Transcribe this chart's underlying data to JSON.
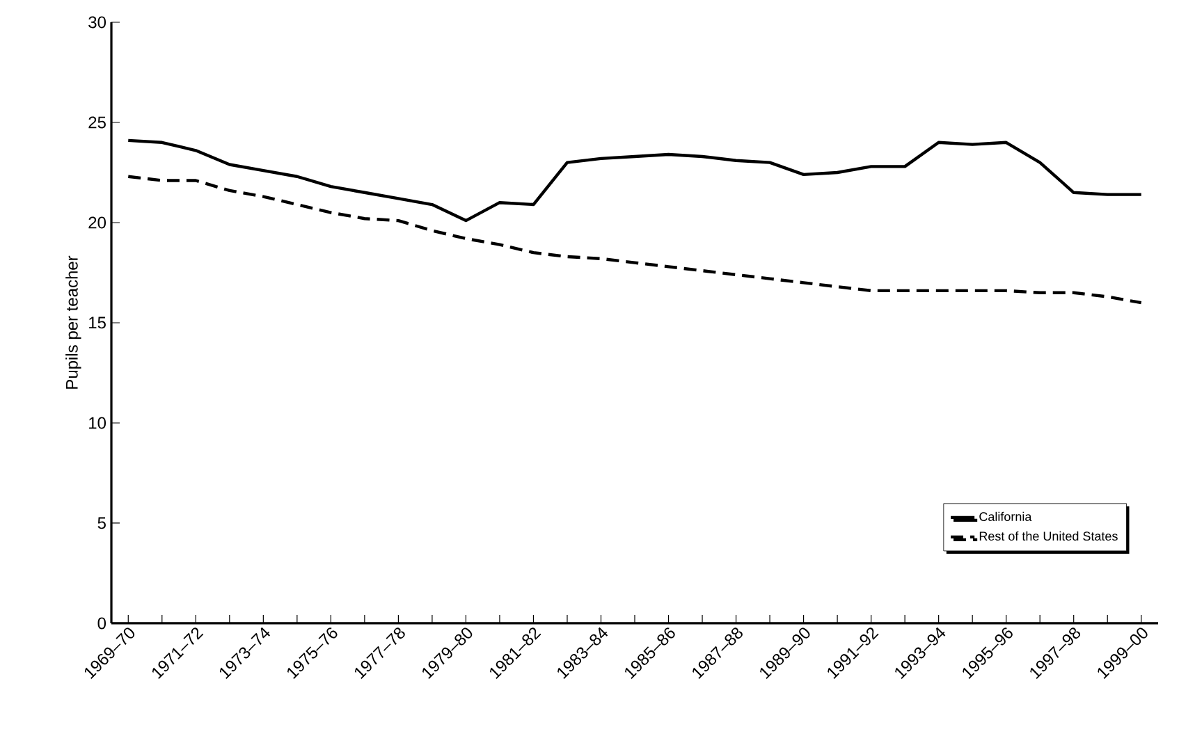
{
  "chart_data": {
    "type": "line",
    "ylabel": "Pupils per teacher",
    "categories": [
      "1969–70",
      null,
      "1971–72",
      null,
      "1973–74",
      null,
      "1975–76",
      null,
      "1977–78",
      null,
      "1979–80",
      null,
      "1981–82",
      null,
      "1983–84",
      null,
      "1985–86",
      null,
      "1987–88",
      null,
      "1989–90",
      null,
      "1991–92",
      null,
      "1993–94",
      null,
      "1995–96",
      null,
      "1997–98",
      null,
      "1999–00"
    ],
    "series": [
      {
        "name": "California",
        "color": "#000000",
        "line_style": "solid",
        "values": [
          24.1,
          24.0,
          23.6,
          22.9,
          22.6,
          22.3,
          21.8,
          21.5,
          21.2,
          20.9,
          20.1,
          21.0,
          20.9,
          23.0,
          23.2,
          23.3,
          23.4,
          23.3,
          23.1,
          23.0,
          22.4,
          22.5,
          22.8,
          22.8,
          24.0,
          23.9,
          24.0,
          23.0,
          21.5,
          21.4,
          21.4
        ]
      },
      {
        "name": "Rest of the United States",
        "color": "#000000",
        "line_style": "dashed",
        "values": [
          22.3,
          22.1,
          22.1,
          21.6,
          21.3,
          20.9,
          20.5,
          20.2,
          20.1,
          19.6,
          19.2,
          18.9,
          18.5,
          18.3,
          18.2,
          18.0,
          17.8,
          17.6,
          17.4,
          17.2,
          17.0,
          16.8,
          16.6,
          16.6,
          16.6,
          16.6,
          16.6,
          16.5,
          16.5,
          16.3,
          16.0
        ]
      }
    ],
    "ylim": [
      0,
      30
    ],
    "yticks": [
      0,
      5,
      10,
      15,
      20,
      25,
      30
    ],
    "grid": false,
    "legend": "bottom right",
    "marker": "none"
  }
}
